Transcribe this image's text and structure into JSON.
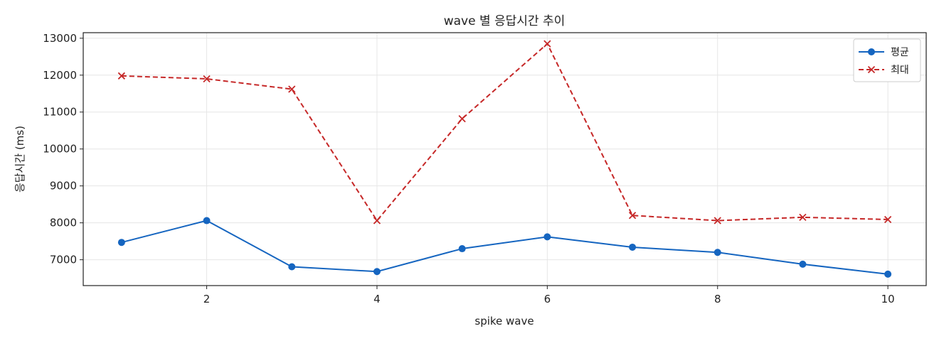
{
  "chart_data": {
    "type": "line",
    "title": "wave 별 응답시간 추이",
    "xlabel": "spike wave",
    "ylabel": "응답시간 (ms)",
    "x": [
      1,
      2,
      3,
      4,
      5,
      6,
      7,
      8,
      9,
      10
    ],
    "xlim": [
      0.55,
      10.45
    ],
    "ylim": [
      6300,
      13150
    ],
    "xticks": [
      2,
      4,
      6,
      8,
      10
    ],
    "yticks": [
      7000,
      8000,
      9000,
      10000,
      11000,
      12000,
      13000
    ],
    "grid": true,
    "legend_position": "top-right",
    "series": [
      {
        "name": "평균",
        "color": "#1565c0",
        "line_style": "solid",
        "marker": "circle",
        "values": [
          7470,
          8060,
          6810,
          6680,
          7300,
          7620,
          7340,
          7200,
          6880,
          6610
        ]
      },
      {
        "name": "최대",
        "color": "#c62828",
        "line_style": "dashed",
        "marker": "x",
        "values": [
          11980,
          11900,
          11620,
          8060,
          10820,
          12850,
          8200,
          8060,
          8150,
          8090
        ]
      }
    ]
  }
}
